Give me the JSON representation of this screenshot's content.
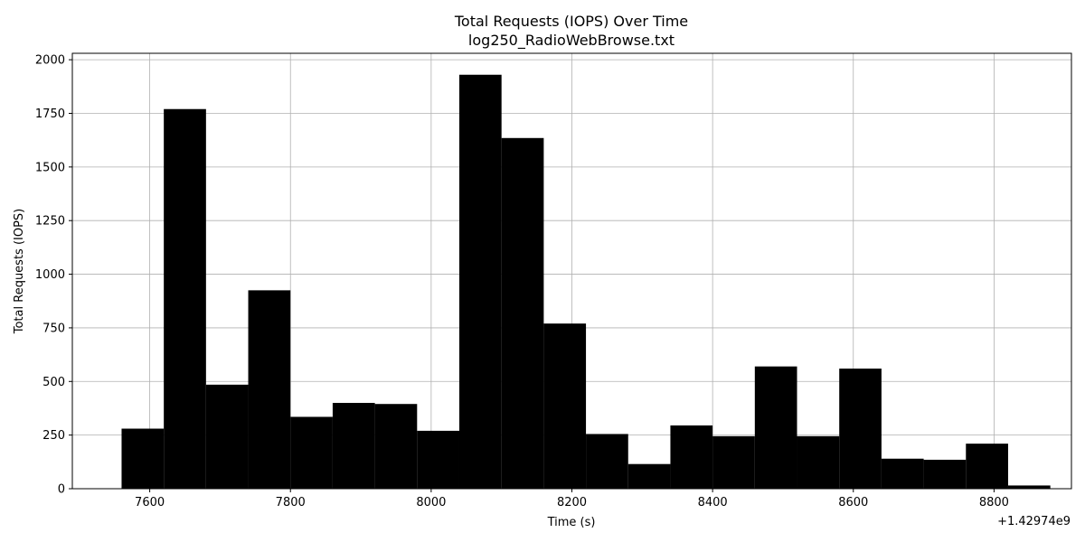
{
  "chart_data": {
    "type": "bar",
    "title": "Total Requests (IOPS) Over Time",
    "subtitle": "log250_RadioWebBrowse.txt",
    "xlabel": "Time (s)",
    "ylabel": "Total Requests (IOPS)",
    "x_offset_label": "+1.42974e9",
    "xlim": [
      7490,
      8910
    ],
    "ylim": [
      0,
      2030
    ],
    "x_ticks": [
      7600,
      7800,
      8000,
      8200,
      8400,
      8600,
      8800
    ],
    "y_ticks": [
      0,
      250,
      500,
      750,
      1000,
      1250,
      1500,
      1750,
      2000
    ],
    "grid": true,
    "bar_color": "#000000",
    "bins": [
      {
        "x0": 7560,
        "x1": 7620,
        "value": 280
      },
      {
        "x0": 7620,
        "x1": 7680,
        "value": 1770
      },
      {
        "x0": 7680,
        "x1": 7740,
        "value": 485
      },
      {
        "x0": 7740,
        "x1": 7800,
        "value": 925
      },
      {
        "x0": 7800,
        "x1": 7860,
        "value": 335
      },
      {
        "x0": 7860,
        "x1": 7920,
        "value": 400
      },
      {
        "x0": 7920,
        "x1": 7980,
        "value": 395
      },
      {
        "x0": 7980,
        "x1": 8040,
        "value": 270
      },
      {
        "x0": 8040,
        "x1": 8100,
        "value": 1930
      },
      {
        "x0": 8100,
        "x1": 8160,
        "value": 1635
      },
      {
        "x0": 8160,
        "x1": 8220,
        "value": 770
      },
      {
        "x0": 8220,
        "x1": 8280,
        "value": 255
      },
      {
        "x0": 8280,
        "x1": 8340,
        "value": 115
      },
      {
        "x0": 8340,
        "x1": 8400,
        "value": 295
      },
      {
        "x0": 8400,
        "x1": 8460,
        "value": 245
      },
      {
        "x0": 8460,
        "x1": 8520,
        "value": 570
      },
      {
        "x0": 8520,
        "x1": 8580,
        "value": 245
      },
      {
        "x0": 8580,
        "x1": 8640,
        "value": 560
      },
      {
        "x0": 8640,
        "x1": 8700,
        "value": 140
      },
      {
        "x0": 8700,
        "x1": 8760,
        "value": 135
      },
      {
        "x0": 8760,
        "x1": 8820,
        "value": 210
      },
      {
        "x0": 8820,
        "x1": 8880,
        "value": 15
      }
    ]
  }
}
